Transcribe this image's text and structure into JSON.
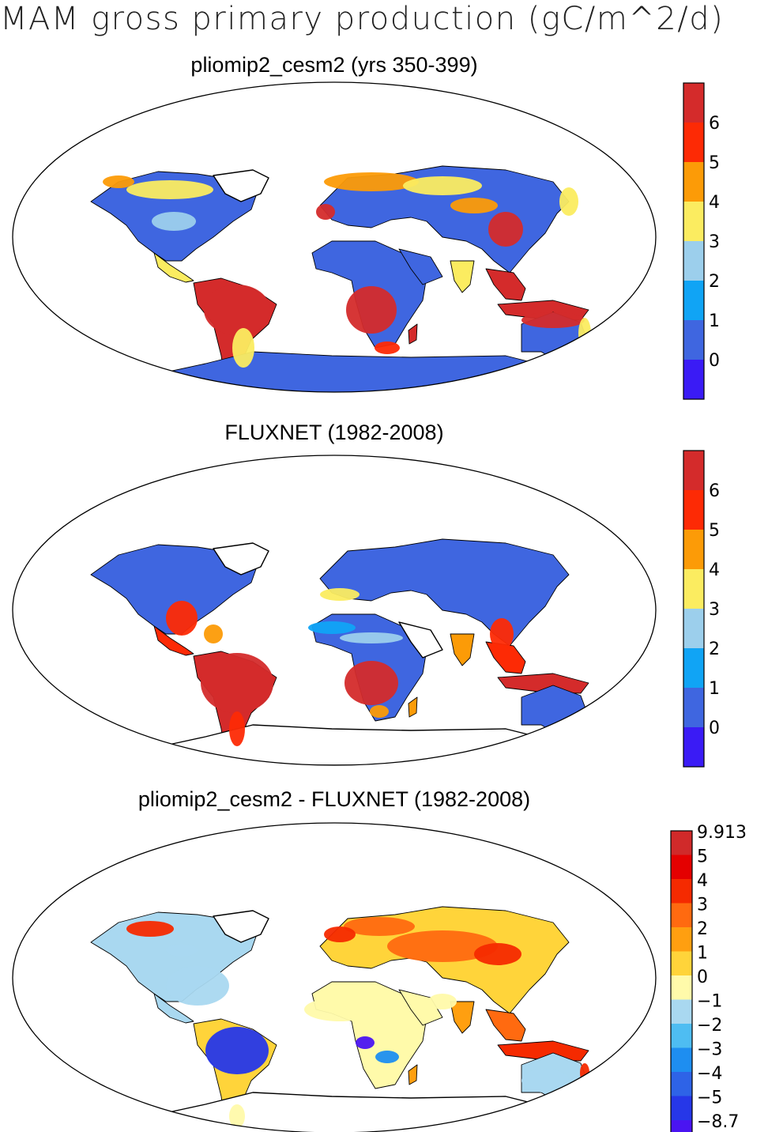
{
  "title": "MAM gross primary production (gC/m^2/d)",
  "colors": {
    "gpp_levels": [
      "#3a1bf5",
      "#3f66e0",
      "#10a4f5",
      "#9ccfec",
      "#fbec60",
      "#fc9b07",
      "#fd2a05",
      "#d42b2b"
    ],
    "diff_levels": [
      "#4a14f2",
      "#2637e8",
      "#2e63e7",
      "#1e8ef0",
      "#4ebdf2",
      "#a9d8f0",
      "#fffaaa",
      "#ffd43a",
      "#ff9f10",
      "#ff6a10",
      "#f52a00",
      "#e40000",
      "#d02a2a"
    ],
    "ocean": "#ffffff",
    "coast": "#000000"
  },
  "panels": [
    {
      "id": "model",
      "title": "pliomip2_cesm2 (yrs 350-399)",
      "colorbar": {
        "labels": [
          "6",
          "5",
          "4",
          "3",
          "2",
          "1",
          "0"
        ]
      }
    },
    {
      "id": "obs",
      "title": "FLUXNET (1982-2008)",
      "colorbar": {
        "labels": [
          "6",
          "5",
          "4",
          "3",
          "2",
          "1",
          "0"
        ]
      }
    },
    {
      "id": "diff",
      "title": "pliomip2_cesm2 - FLUXNET (1982-2008)",
      "colorbar": {
        "labels": [
          "9.913",
          "5",
          "4",
          "3",
          "2",
          "1",
          "0",
          "−1",
          "−2",
          "−3",
          "−4",
          "−5",
          "−8.7"
        ]
      }
    }
  ]
}
